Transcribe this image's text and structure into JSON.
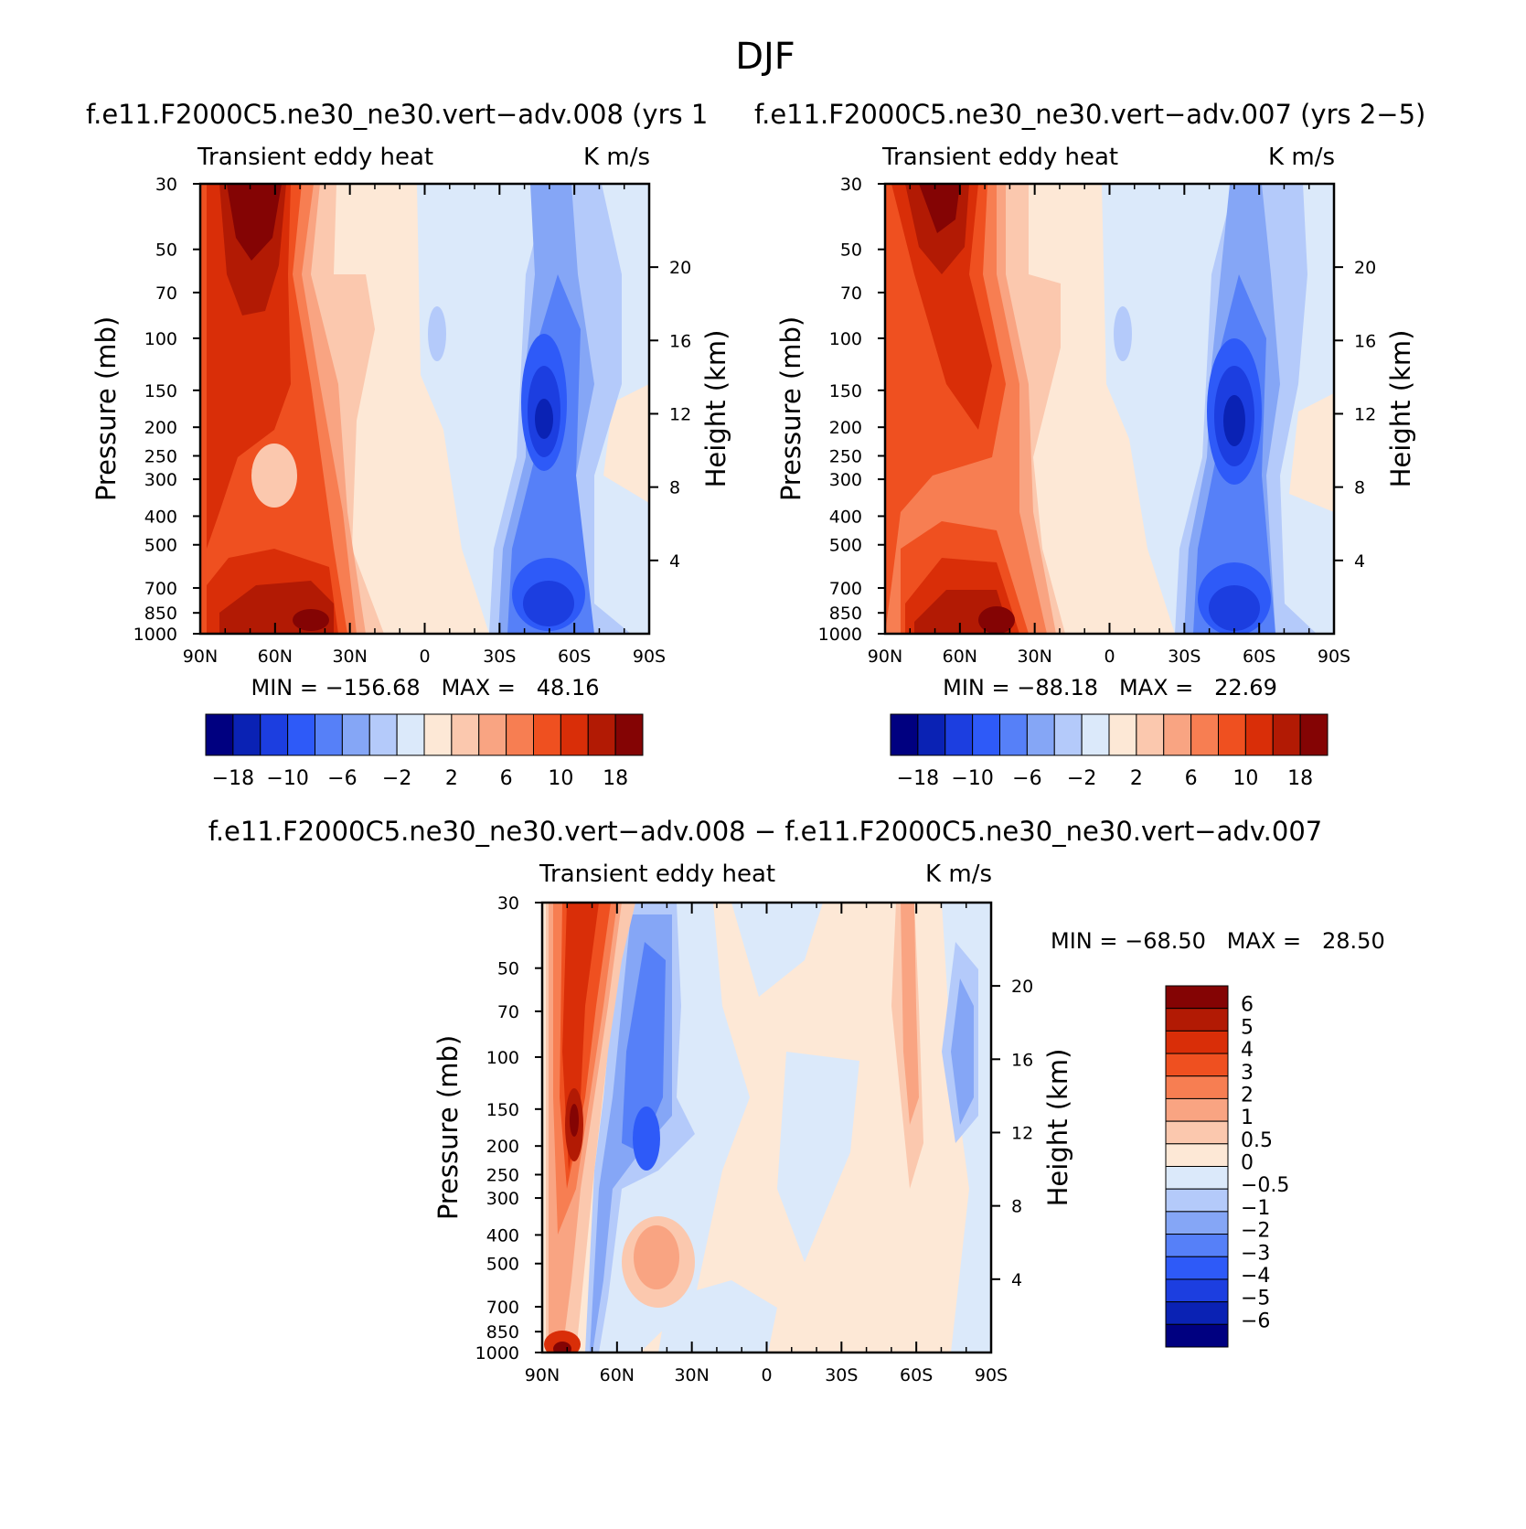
{
  "chart_data": {
    "type": "contour",
    "title": "DJF",
    "panels": [
      {
        "id": "p1",
        "title": "f.e11.F2000C5.ne30_ne30.vert−adv.008 (yrs 1",
        "left_label": "Transient eddy heat",
        "right_label": "K m/s",
        "ylabel": "Pressure (mb)",
        "ylabel_right": "Height (km)",
        "x_ticks": [
          "90N",
          "60N",
          "30N",
          "0",
          "30S",
          "60S",
          "90S"
        ],
        "y_ticks": [
          "30",
          "50",
          "70",
          "100",
          "150",
          "200",
          "250",
          "300",
          "400",
          "500",
          "700",
          "850",
          "1000"
        ],
        "height_ticks": [
          "20",
          "16",
          "12",
          "8",
          "4"
        ],
        "min_max": "MIN = −156.68   MAX =   48.16",
        "colorbar_labels": [
          "−18",
          "−10",
          "−6",
          "−2",
          "2",
          "6",
          "10",
          "18"
        ]
      },
      {
        "id": "p2",
        "title": "f.e11.F2000C5.ne30_ne30.vert−adv.007 (yrs 2−5)",
        "left_label": "Transient eddy heat",
        "right_label": "K m/s",
        "ylabel": "Pressure (mb)",
        "ylabel_right": "Height (km)",
        "x_ticks": [
          "90N",
          "60N",
          "30N",
          "0",
          "30S",
          "60S",
          "90S"
        ],
        "y_ticks": [
          "30",
          "50",
          "70",
          "100",
          "150",
          "200",
          "250",
          "300",
          "400",
          "500",
          "700",
          "850",
          "1000"
        ],
        "height_ticks": [
          "20",
          "16",
          "12",
          "8",
          "4"
        ],
        "min_max": "MIN = −88.18   MAX =   22.69",
        "colorbar_labels": [
          "−18",
          "−10",
          "−6",
          "−2",
          "2",
          "6",
          "10",
          "18"
        ]
      },
      {
        "id": "p3",
        "title": "f.e11.F2000C5.ne30_ne30.vert−adv.008 − f.e11.F2000C5.ne30_ne30.vert−adv.007",
        "left_label": "Transient eddy heat",
        "right_label": "K m/s",
        "ylabel": "Pressure (mb)",
        "ylabel_right": "Height (km)",
        "x_ticks": [
          "90N",
          "60N",
          "30N",
          "0",
          "30S",
          "60S",
          "90S"
        ],
        "y_ticks": [
          "30",
          "50",
          "70",
          "100",
          "150",
          "200",
          "250",
          "300",
          "400",
          "500",
          "700",
          "850",
          "1000"
        ],
        "height_ticks": [
          "20",
          "16",
          "12",
          "8",
          "4"
        ],
        "min_max": "MIN = −68.50   MAX =   28.50",
        "colorbar_labels": [
          "6",
          "5",
          "4",
          "3",
          "2",
          "1",
          "0.5",
          "0",
          "−0.5",
          "−1",
          "−2",
          "−3",
          "−4",
          "−5",
          "−6"
        ]
      }
    ],
    "colors": [
      "#000080",
      "#0a22b4",
      "#1c3ee0",
      "#2e5af8",
      "#5680f8",
      "#85a6f6",
      "#b4cafa",
      "#dbe9fa",
      "#fde8d6",
      "#fbc8ae",
      "#f9a482",
      "#f77e52",
      "#ef5020",
      "#d92e08",
      "#b21a04",
      "#840404"
    ]
  }
}
